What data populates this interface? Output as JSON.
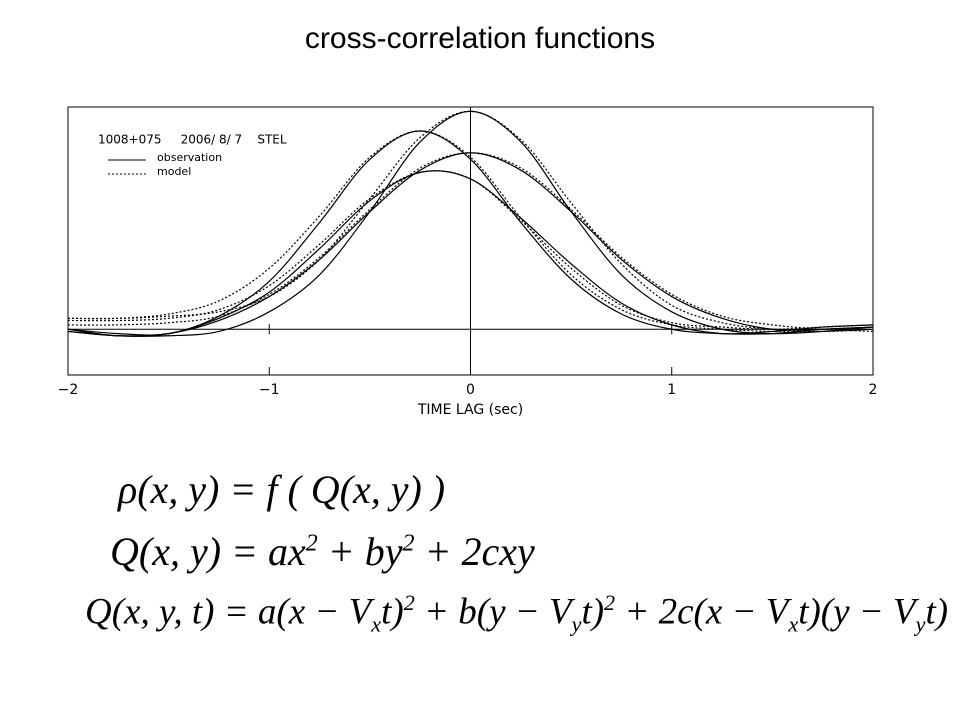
{
  "slide": {
    "title": "cross-correlation functions"
  },
  "chart_data": {
    "type": "line",
    "annotation": "1008+075     2006/ 8/ 7    STEL",
    "xlabel": "TIME LAG (sec)",
    "xlim": [
      -2,
      2
    ],
    "ylim": [
      -0.21,
      1.02
    ],
    "xticks": [
      {
        "value": -2,
        "label": "−2"
      },
      {
        "value": -1,
        "label": "−1"
      },
      0,
      1,
      2
    ],
    "legend": [
      {
        "name": "observation",
        "style": "solid"
      },
      {
        "name": "model",
        "style": "dotted"
      }
    ],
    "x": [
      -2,
      -1.75,
      -1.5,
      -1.25,
      -1,
      -0.75,
      -0.5,
      -0.25,
      0,
      0.25,
      0.5,
      0.75,
      1,
      1.25,
      1.5,
      1.75,
      2
    ],
    "series": [
      {
        "style": "solid",
        "color": "#000000",
        "values": [
          -0.01,
          -0.03,
          -0.03,
          -0.01,
          0.08,
          0.25,
          0.54,
          0.86,
          1,
          0.86,
          0.54,
          0.25,
          0.08,
          0.0,
          -0.02,
          -0.01,
          0.01
        ]
      },
      {
        "style": "dotted",
        "color": "#000000",
        "values": [
          0.05,
          0.05,
          0.06,
          0.08,
          0.15,
          0.32,
          0.6,
          0.88,
          1,
          0.87,
          0.58,
          0.3,
          0.11,
          0.03,
          0.0,
          -0.01,
          0.0
        ]
      },
      {
        "style": "solid",
        "color": "#000000",
        "values": [
          0.0,
          -0.02,
          -0.02,
          0.06,
          0.22,
          0.49,
          0.78,
          0.91,
          0.78,
          0.49,
          0.23,
          0.07,
          0.0,
          -0.02,
          -0.02,
          0.0,
          0.01
        ]
      },
      {
        "style": "dotted",
        "color": "#000000",
        "values": [
          0.05,
          0.05,
          0.07,
          0.13,
          0.28,
          0.52,
          0.79,
          0.91,
          0.79,
          0.51,
          0.25,
          0.09,
          0.02,
          0.0,
          -0.01,
          -0.01,
          0.0
        ]
      },
      {
        "style": "solid",
        "color": "#000000",
        "values": [
          -0.01,
          -0.03,
          -0.02,
          0.04,
          0.15,
          0.32,
          0.54,
          0.73,
          0.81,
          0.73,
          0.54,
          0.32,
          0.15,
          0.05,
          0.0,
          0.0,
          0.01
        ]
      },
      {
        "style": "dotted",
        "color": "#000000",
        "values": [
          0.02,
          0.02,
          0.03,
          0.06,
          0.16,
          0.33,
          0.55,
          0.74,
          0.81,
          0.74,
          0.55,
          0.33,
          0.16,
          0.06,
          0.02,
          0.0,
          -0.01
        ]
      },
      {
        "style": "solid",
        "color": "#000000",
        "values": [
          0.0,
          -0.03,
          -0.02,
          0.05,
          0.17,
          0.37,
          0.59,
          0.72,
          0.69,
          0.51,
          0.3,
          0.12,
          0.02,
          -0.02,
          -0.01,
          0.01,
          0.02
        ]
      },
      {
        "style": "dotted",
        "color": "#000000",
        "values": [
          0.04,
          0.04,
          0.05,
          0.09,
          0.2,
          0.39,
          0.6,
          0.72,
          0.69,
          0.5,
          0.28,
          0.11,
          0.03,
          0.01,
          0.0,
          0.01,
          0.02
        ]
      }
    ]
  },
  "equations": [
    [
      {
        "t": "ρ(x, y) = f ( Q(x, y) )"
      }
    ],
    [
      {
        "t": "Q(x, y) = ax"
      },
      {
        "sup": "2"
      },
      {
        "t": " + by"
      },
      {
        "sup": "2"
      },
      {
        "t": " + 2cxy"
      }
    ],
    [
      {
        "t": "Q(x, y, t) = a(x − V"
      },
      {
        "sub": "x"
      },
      {
        "t": "t)"
      },
      {
        "sup": "2"
      },
      {
        "t": " + b(y − V"
      },
      {
        "sub": "y"
      },
      {
        "t": "t)"
      },
      {
        "sup": "2"
      },
      {
        "t": " + 2c(x − V"
      },
      {
        "sub": "x"
      },
      {
        "t": "t)(y − V"
      },
      {
        "sub": "y"
      },
      {
        "t": "t)"
      }
    ]
  ]
}
